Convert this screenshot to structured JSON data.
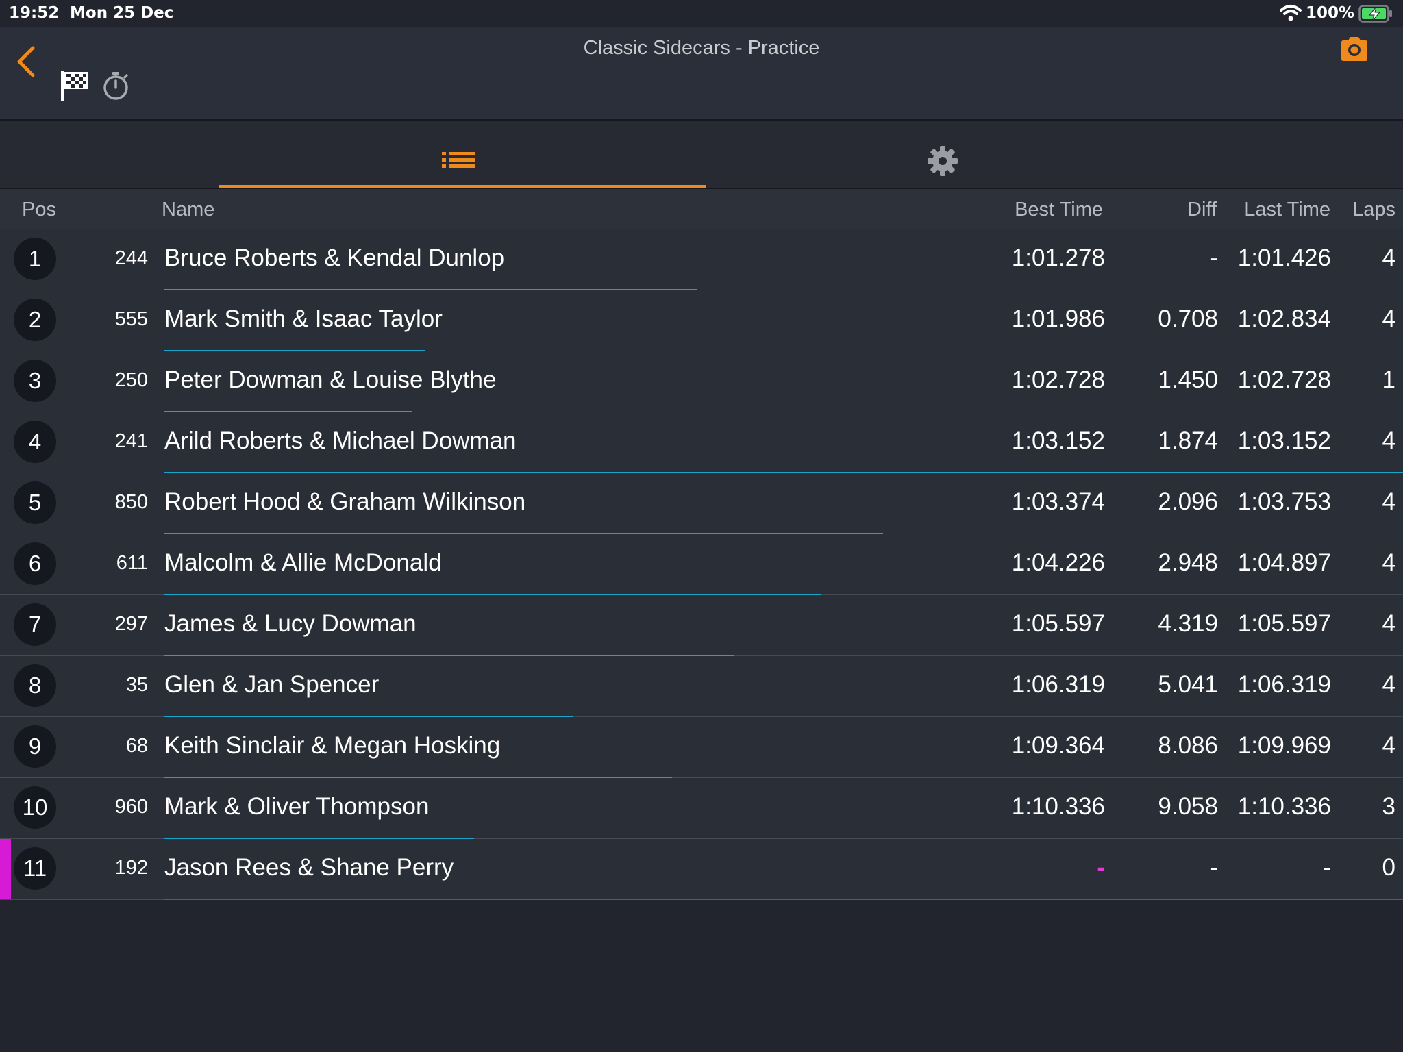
{
  "status_bar": {
    "time": "19:52",
    "date": "Mon 25 Dec",
    "battery": "100%"
  },
  "nav": {
    "title": "Classic Sidecars - Practice"
  },
  "columns": {
    "pos": "Pos",
    "name": "Name",
    "best": "Best Time",
    "diff": "Diff",
    "last": "Last Time",
    "laps": "Laps"
  },
  "colors": {
    "accent": "#f08a1c",
    "progress": "#1fa4c9",
    "highlight": "#d61ad6"
  },
  "rows": [
    {
      "pos": "1",
      "number": "244",
      "name": "Bruce Roberts & Kendal Dunlop",
      "best": "1:01.278",
      "diff": "-",
      "last": "1:01.426",
      "laps": "4",
      "progress": 0.43
    },
    {
      "pos": "2",
      "number": "555",
      "name": "Mark Smith & Isaac Taylor",
      "best": "1:01.986",
      "diff": "0.708",
      "last": "1:02.834",
      "laps": "4",
      "progress": 0.21
    },
    {
      "pos": "3",
      "number": "250",
      "name": "Peter Dowman & Louise Blythe",
      "best": "1:02.728",
      "diff": "1.450",
      "last": "1:02.728",
      "laps": "1",
      "progress": 0.2
    },
    {
      "pos": "4",
      "number": "241",
      "name": "Arild Roberts & Michael Dowman",
      "best": "1:03.152",
      "diff": "1.874",
      "last": "1:03.152",
      "laps": "4",
      "progress": 1.0
    },
    {
      "pos": "5",
      "number": "850",
      "name": "Robert Hood & Graham Wilkinson",
      "best": "1:03.374",
      "diff": "2.096",
      "last": "1:03.753",
      "laps": "4",
      "progress": 0.58
    },
    {
      "pos": "6",
      "number": "611",
      "name": "Malcolm & Allie McDonald",
      "best": "1:04.226",
      "diff": "2.948",
      "last": "1:04.897",
      "laps": "4",
      "progress": 0.53
    },
    {
      "pos": "7",
      "number": "297",
      "name": "James & Lucy Dowman",
      "best": "1:05.597",
      "diff": "4.319",
      "last": "1:05.597",
      "laps": "4",
      "progress": 0.46
    },
    {
      "pos": "8",
      "number": "35",
      "name": "Glen & Jan Spencer",
      "best": "1:06.319",
      "diff": "5.041",
      "last": "1:06.319",
      "laps": "4",
      "progress": 0.33
    },
    {
      "pos": "9",
      "number": "68",
      "name": "Keith Sinclair & Megan Hosking",
      "best": "1:09.364",
      "diff": "8.086",
      "last": "1:09.969",
      "laps": "4",
      "progress": 0.41
    },
    {
      "pos": "10",
      "number": "960",
      "name": "Mark & Oliver Thompson",
      "best": "1:10.336",
      "diff": "9.058",
      "last": "1:10.336",
      "laps": "3",
      "progress": 0.25
    },
    {
      "pos": "11",
      "number": "192",
      "name": "Jason Rees & Shane Perry",
      "best": "-",
      "diff": "-",
      "last": "-",
      "laps": "0",
      "progress": 1.0,
      "highlight": true
    }
  ]
}
